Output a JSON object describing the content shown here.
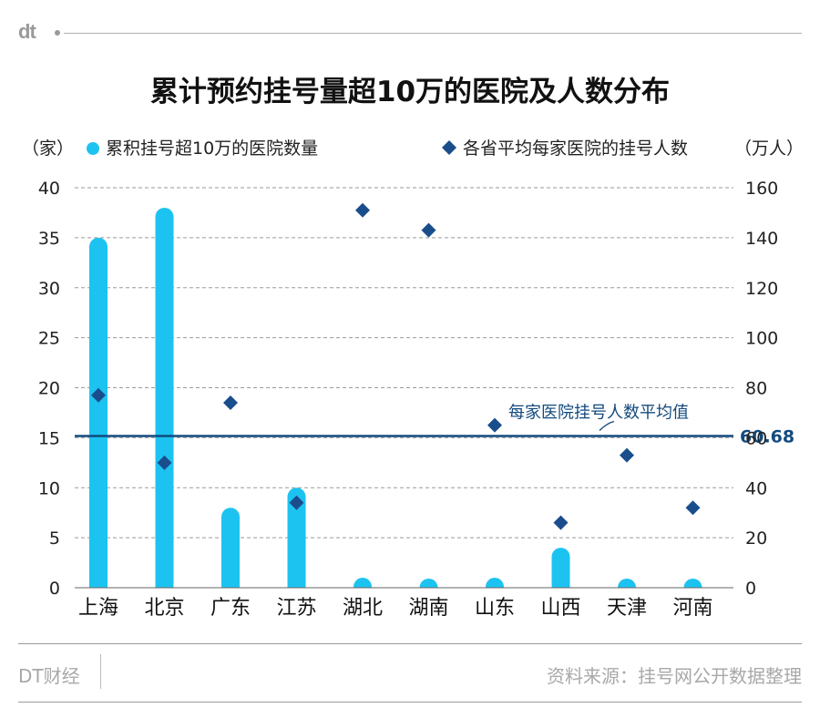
{
  "logo": "dt",
  "footer": {
    "left": "DT财经",
    "right": "资料来源：挂号网公开数据整理"
  },
  "colors": {
    "bar": "#1cc3f1",
    "diamond": "#1a4d8c",
    "avg_line": "#124a7e",
    "grid": "#9a9a9a",
    "text": "#222222"
  },
  "chart_data": {
    "type": "bar",
    "title": "累计预约挂号量超10万的医院及人数分布",
    "left_unit": "（家）",
    "right_unit": "（万人）",
    "categories": [
      "上海",
      "北京",
      "广东",
      "江苏",
      "湖北",
      "湖南",
      "山东",
      "山西",
      "天津",
      "河南"
    ],
    "series": [
      {
        "name": "累积挂号超10万的医院数量",
        "type": "bar",
        "axis": "left",
        "values": [
          35,
          38,
          8,
          10,
          1,
          0.5,
          1,
          4,
          0.5,
          0.5
        ]
      },
      {
        "name": "各省平均每家医院的挂号人数",
        "type": "scatter",
        "marker": "diamond",
        "axis": "right",
        "values": [
          77,
          50,
          74,
          34,
          151,
          143,
          65,
          26,
          53,
          32
        ]
      }
    ],
    "left_axis": {
      "ylim": [
        0,
        40
      ],
      "ticks": [
        0,
        5,
        10,
        15,
        20,
        25,
        30,
        35,
        40
      ]
    },
    "right_axis": {
      "ylim": [
        0,
        160
      ],
      "ticks": [
        0,
        20,
        40,
        60,
        80,
        100,
        120,
        140,
        160
      ]
    },
    "reference_line": {
      "label": "每家医院挂号人数平均值",
      "value": 60.68,
      "value_label": "60.68",
      "axis": "right"
    },
    "grid": true,
    "legend": "top"
  }
}
